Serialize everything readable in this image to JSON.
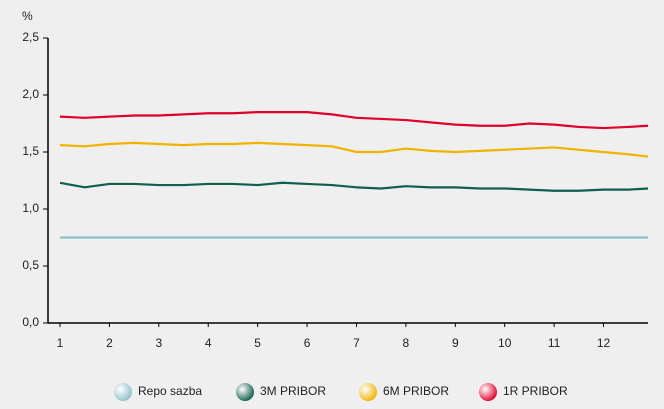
{
  "chart_data": {
    "type": "line",
    "ylabel": "%",
    "x": [
      1,
      1.5,
      2,
      2.5,
      3,
      3.5,
      4,
      4.5,
      5,
      5.5,
      6,
      6.5,
      7,
      7.5,
      8,
      8.5,
      9,
      9.5,
      10,
      10.5,
      11,
      11.5,
      12,
      12.5,
      12.9
    ],
    "xlim": [
      1,
      12.9
    ],
    "xticks": [
      1,
      2,
      3,
      4,
      5,
      6,
      7,
      8,
      9,
      10,
      11,
      12
    ],
    "ylim": [
      0,
      2.5
    ],
    "yticks": [
      {
        "value": 0,
        "label": "0,0"
      },
      {
        "value": 0.5,
        "label": "0,5"
      },
      {
        "value": 1,
        "label": "1,0"
      },
      {
        "value": 1.5,
        "label": "1,5"
      },
      {
        "value": 2,
        "label": "2,0"
      },
      {
        "value": 2.5,
        "label": "2,5"
      }
    ],
    "grid": false,
    "legend": "bottom",
    "series": [
      {
        "name": "Repo sazba",
        "color": "#8fc0c8",
        "values": [
          0.75,
          0.75,
          0.75,
          0.75,
          0.75,
          0.75,
          0.75,
          0.75,
          0.75,
          0.75,
          0.75,
          0.75,
          0.75,
          0.75,
          0.75,
          0.75,
          0.75,
          0.75,
          0.75,
          0.75,
          0.75,
          0.75,
          0.75,
          0.75,
          0.75
        ]
      },
      {
        "name": "3M PRIBOR",
        "color": "#0f5e4e",
        "values": [
          1.23,
          1.19,
          1.22,
          1.22,
          1.21,
          1.21,
          1.22,
          1.22,
          1.21,
          1.23,
          1.22,
          1.21,
          1.19,
          1.18,
          1.2,
          1.19,
          1.19,
          1.18,
          1.18,
          1.17,
          1.16,
          1.16,
          1.17,
          1.17,
          1.18
        ]
      },
      {
        "name": "6M PRIBOR",
        "color": "#f0b400",
        "values": [
          1.56,
          1.55,
          1.57,
          1.58,
          1.57,
          1.56,
          1.57,
          1.57,
          1.58,
          1.57,
          1.56,
          1.55,
          1.5,
          1.5,
          1.53,
          1.51,
          1.5,
          1.51,
          1.52,
          1.53,
          1.54,
          1.52,
          1.5,
          1.48,
          1.46
        ]
      },
      {
        "name": "1R PRIBOR",
        "color": "#e0002c",
        "values": [
          1.81,
          1.8,
          1.81,
          1.82,
          1.82,
          1.83,
          1.84,
          1.84,
          1.85,
          1.85,
          1.85,
          1.83,
          1.8,
          1.79,
          1.78,
          1.76,
          1.74,
          1.73,
          1.73,
          1.75,
          1.74,
          1.72,
          1.71,
          1.72,
          1.73
        ]
      }
    ]
  }
}
